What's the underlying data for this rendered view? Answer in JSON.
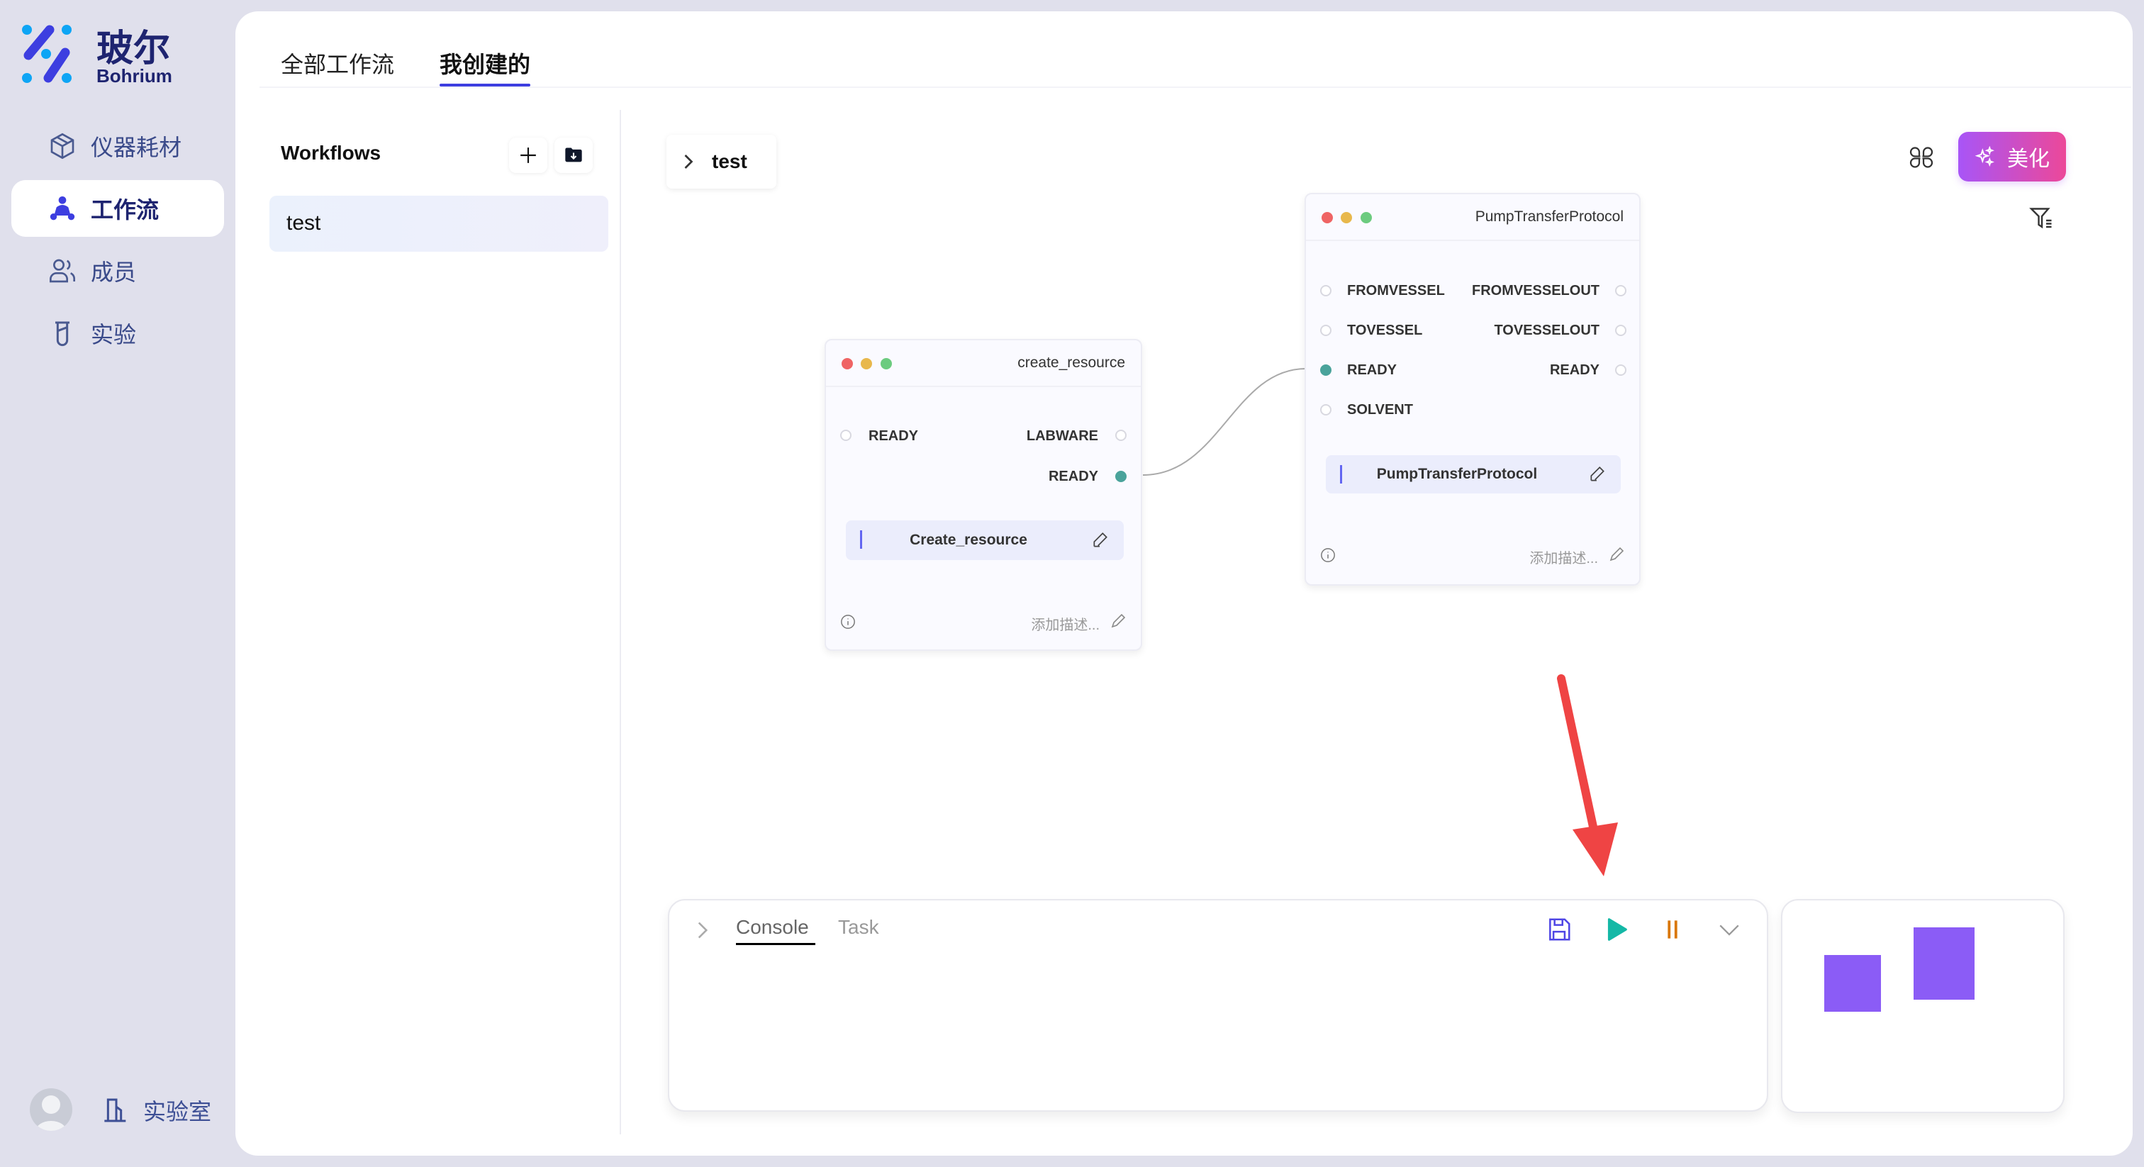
{
  "brand": {
    "name": "玻尔",
    "sub": "Bohrium"
  },
  "sidebar": {
    "items": [
      {
        "label": "仪器耗材",
        "icon": "box-icon"
      },
      {
        "label": "工作流",
        "icon": "workflow-icon",
        "active": true
      },
      {
        "label": "成员",
        "icon": "members-icon"
      },
      {
        "label": "实验",
        "icon": "flask-icon"
      }
    ],
    "footer": {
      "lab_label": "实验室"
    }
  },
  "tabs": [
    {
      "label": "全部工作流"
    },
    {
      "label": "我创建的",
      "active": true
    }
  ],
  "workflows": {
    "title": "Workflows",
    "items": [
      "test"
    ]
  },
  "canvas": {
    "breadcrumb": "test",
    "beautify_label": "美化",
    "nodes": [
      {
        "title": "create_resource",
        "inputs": [
          "READY"
        ],
        "outputs": [
          "LABWARE",
          "READY"
        ],
        "function": "Create_resource",
        "desc_placeholder": "添加描述..."
      },
      {
        "title": "PumpTransferProtocol",
        "inputs": [
          "FROMVESSEL",
          "TOVESSEL",
          "READY",
          "SOLVENT"
        ],
        "outputs": [
          "FROMVESSELOUT",
          "TOVESSELOUT",
          "READY"
        ],
        "function": "PumpTransferProtocol",
        "desc_placeholder": "添加描述..."
      }
    ]
  },
  "console": {
    "tabs": [
      "Console",
      "Task"
    ],
    "active_tab": "Console"
  },
  "colors": {
    "accent": "#3d3ee0",
    "beautify_from": "#a855f7",
    "beautify_to": "#ec4899",
    "port_active": "#4aa39b",
    "play": "#14b8a6",
    "pause": "#d97706",
    "minimap": "#8b5cf6",
    "arrow": "#ef4444"
  }
}
